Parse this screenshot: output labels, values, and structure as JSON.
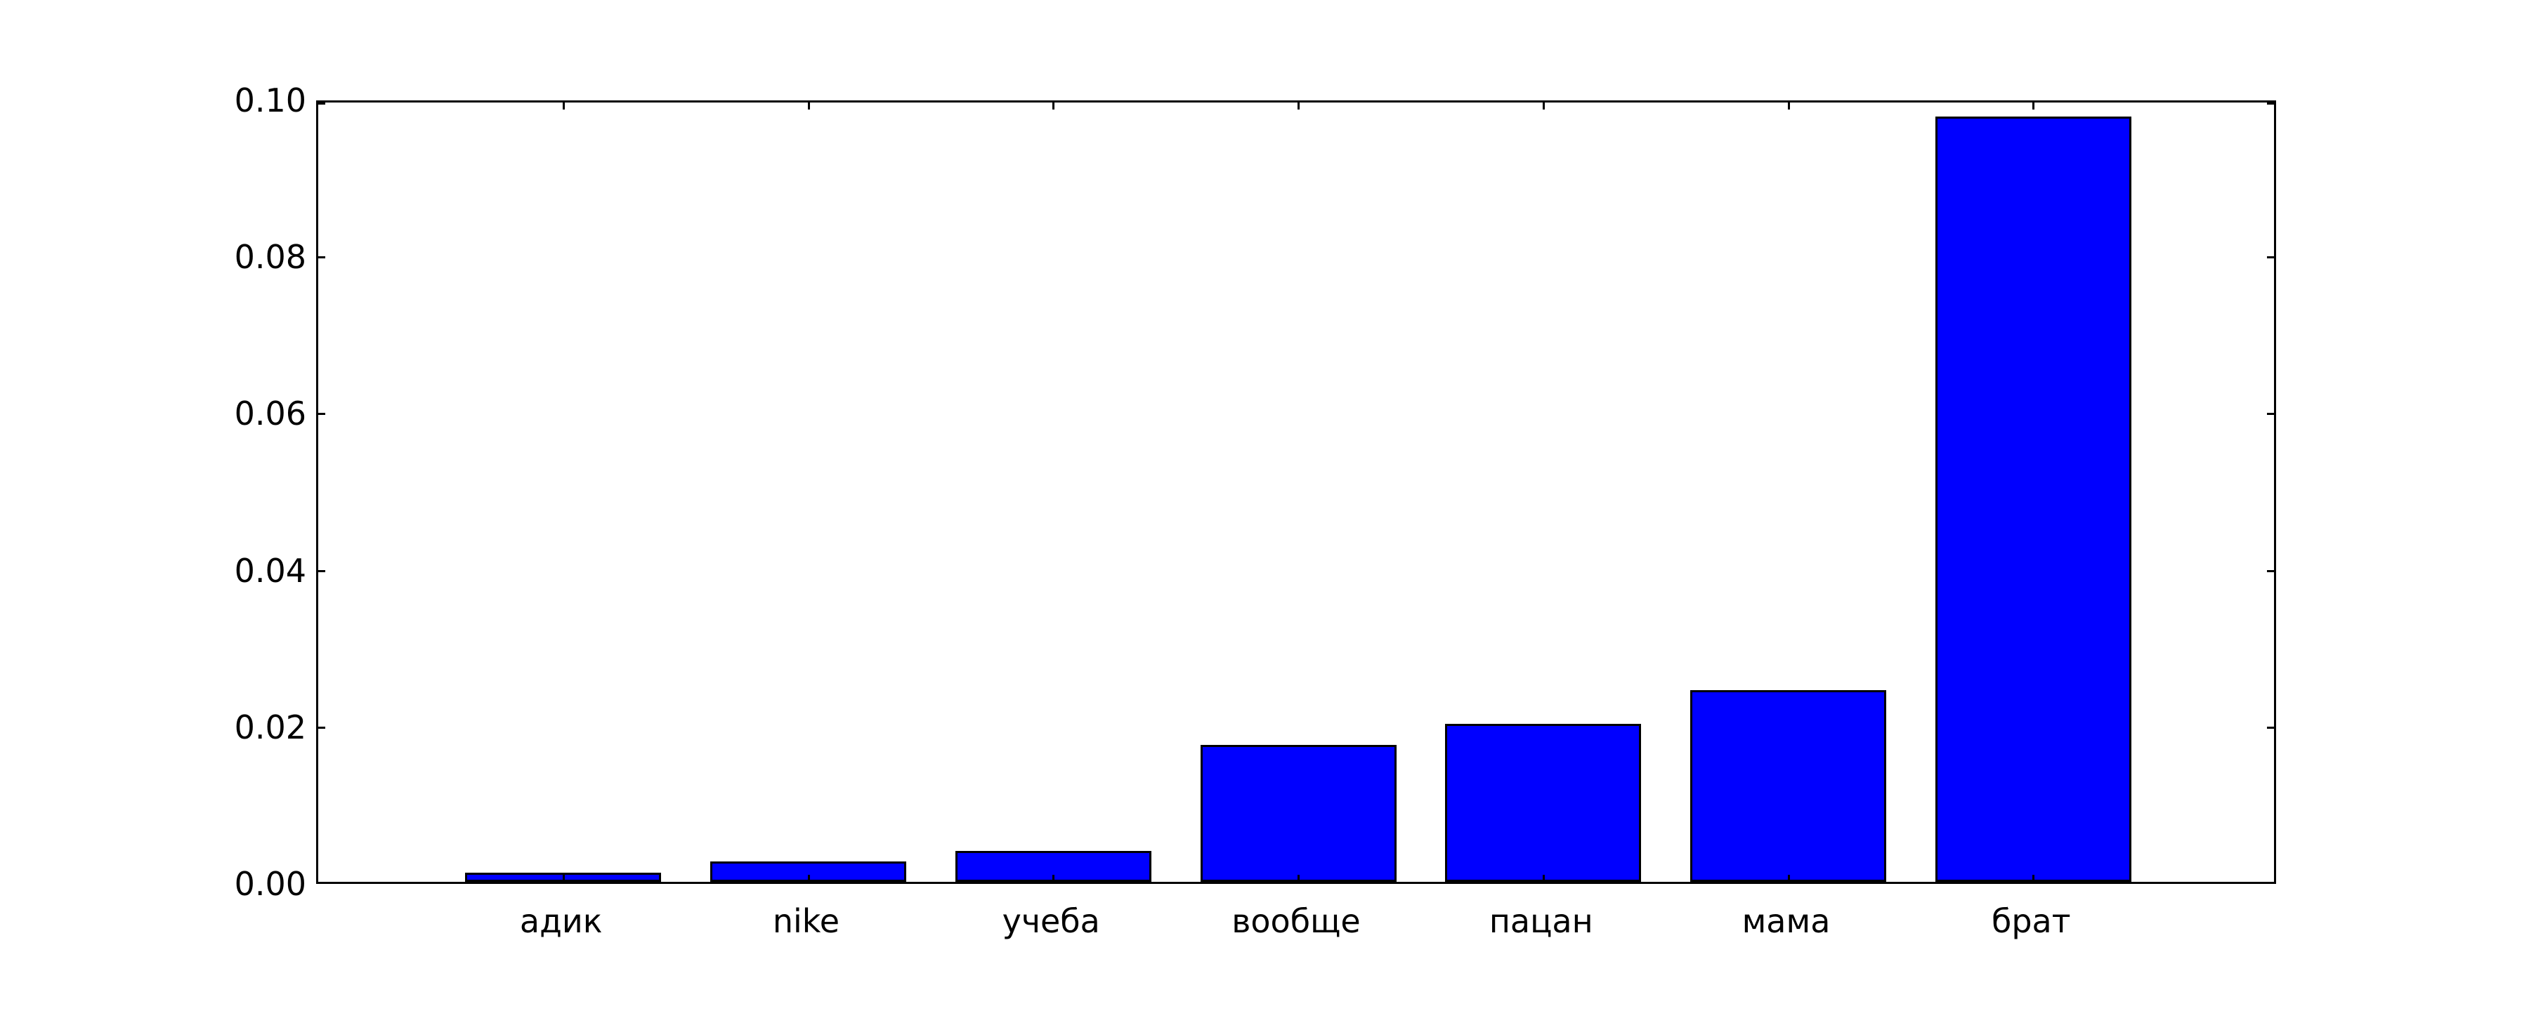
{
  "chart_data": {
    "type": "bar",
    "title": "",
    "xlabel": "",
    "ylabel": "",
    "categories": [
      "адик",
      "nike",
      "учеба",
      "вообще",
      "пацан",
      "мама",
      "брат"
    ],
    "values": [
      0.0012,
      0.0026,
      0.0039,
      0.0175,
      0.0202,
      0.0245,
      0.0977
    ],
    "ylim": [
      0,
      0.1
    ],
    "xlim": [
      -1,
      7
    ],
    "yticks": [
      "0.00",
      "0.02",
      "0.04",
      "0.06",
      "0.08",
      "0.10"
    ],
    "ytick_values": [
      0.0,
      0.02,
      0.04,
      0.06,
      0.08,
      0.1
    ],
    "bar_width_fraction": 0.8,
    "bar_color": "#0000ff",
    "bar_edge_color": "#000000",
    "axis_color": "#000000",
    "background_color": "#ffffff",
    "grid": false,
    "legend": null,
    "tick_direction": "in"
  }
}
